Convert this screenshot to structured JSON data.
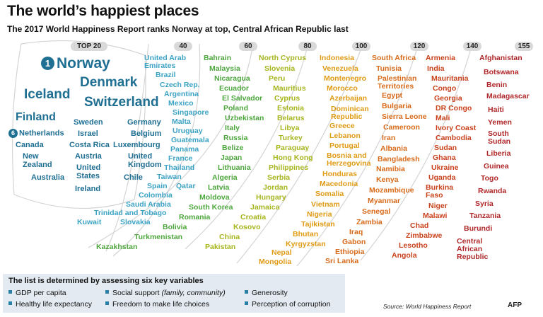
{
  "title": "The world’s happiest places",
  "subtitle": "The 2017 World Happiness Report ranks Norway at top, Central African Republic last",
  "colors": [
    "#1f6f93",
    "#3ca3c4",
    "#4ea63e",
    "#a7b51e",
    "#e09b14",
    "#d86b1b",
    "#c9421d",
    "#b0282a"
  ],
  "chart_data": {
    "type": "table",
    "group_labels": [
      "TOP 20",
      "40",
      "60",
      "80",
      "100",
      "120",
      "140",
      "155"
    ],
    "groups": [
      {
        "countries": [
          "Norway",
          "Denmark",
          "Iceland",
          "Switzerland",
          "Finland",
          "Netherlands",
          "Canada",
          "New\nZealand",
          "Australia",
          "Sweden",
          "Israel",
          "Costa Rica",
          "Austria",
          "United\nStates",
          "Ireland",
          "Germany",
          "Belgium",
          "Luxembourg",
          "United\nKingdom",
          "Chile"
        ]
      },
      {
        "countries": [
          "United Arab\nEmirates",
          "Brazil",
          "Czech Rep.",
          "Argentina",
          "Mexico",
          "Singapore",
          "Malta",
          "Uruguay",
          "Guatemala",
          "Panama",
          "France",
          "Thailand",
          "Taiwan",
          "Spain",
          "Qatar",
          "Colombia",
          "Saudi Arabia",
          "Trinidad and Tobago",
          "Kuwait",
          "Slovakia"
        ]
      },
      {
        "countries": [
          "Bahrain",
          "Malaysia",
          "Nicaragua",
          "Ecuador",
          "El Salvador",
          "Poland",
          "Uzbekistan",
          "Italy",
          "Russia",
          "Belize",
          "Japan",
          "Lithuania",
          "Algeria",
          "Latvia",
          "Moldova",
          "South Korea",
          "Romania",
          "Bolivia",
          "Turkmenistan",
          "Kazakhstan"
        ]
      },
      {
        "countries": [
          "North Cyprus",
          "Slovenia",
          "Peru",
          "Mauritius",
          "Cyprus",
          "Estonia",
          "Belarus",
          "Libya",
          "Turkey",
          "Paraguay",
          "Hong Kong",
          "Philippines",
          "Serbia",
          "Jordan",
          "Hungary",
          "Jamaica",
          "Croatia",
          "Kosovo",
          "China",
          "Pakistan"
        ]
      },
      {
        "countries": [
          "Indonesia",
          "Venezuela",
          "Montenegro",
          "Morocco",
          "Azerbaijan",
          "Dominican\nRepublic",
          "Greece",
          "Lebanon",
          "Portugal",
          "Bosnia and\nHerzegovina",
          "Honduras",
          "Macedonia",
          "Somalia",
          "Vietnam",
          "Nigeria",
          "Tajikistan",
          "Bhutan",
          "Kyrgyzstan",
          "Nepal",
          "Mongolia"
        ]
      },
      {
        "countries": [
          "South Africa",
          "Tunisia",
          "Palestinian\nTerritories",
          "Egypt",
          "Bulgaria",
          "Sierra Leone",
          "Cameroon",
          "Iran",
          "Albania",
          "Bangladesh",
          "Namibia",
          "Kenya",
          "Mozambique",
          "Myanmar",
          "Senegal",
          "Zambia",
          "Iraq",
          "Gabon",
          "Ethiopia",
          "Sri Lanka"
        ]
      },
      {
        "countries": [
          "Armenia",
          "India",
          "Mauritania",
          "Congo",
          "Georgia",
          "DR Congo",
          "Mali",
          "Ivory Coast",
          "Cambodia",
          "Sudan",
          "Ghana",
          "Ukraine",
          "Uganda",
          "Burkina\nFaso",
          "Niger",
          "Malawi",
          "Chad",
          "Zimbabwe",
          "Lesotho",
          "Angola"
        ]
      },
      {
        "countries": [
          "Afghanistan",
          "Botswana",
          "Benin",
          "Madagascar",
          "Haiti",
          "Yemen",
          "South\nSudan",
          "Liberia",
          "Guinea",
          "Togo",
          "Rwanda",
          "Syria",
          "Tanzania",
          "Burundi",
          "Central\nAfrican\nRepublic"
        ]
      }
    ],
    "rank_markers": [
      {
        "rank": "1",
        "country": "Norway"
      },
      {
        "rank": "6",
        "country": "Netherlands"
      }
    ]
  },
  "legend": {
    "title": "The list is determined by assessing six key variables",
    "items": [
      {
        "text": "GDP per capita"
      },
      {
        "text": "Healthy life expectancy"
      },
      {
        "text": "Social support",
        "note": "(family, community)"
      },
      {
        "text": "Freedom to make life choices"
      },
      {
        "text": "Generosity"
      },
      {
        "text": "Perception of corruption"
      }
    ]
  },
  "source": "Source: World Happiness Report",
  "logo_text": "AFP"
}
